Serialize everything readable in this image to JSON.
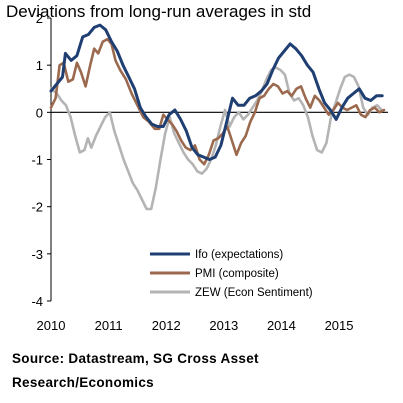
{
  "chart_data": {
    "type": "line",
    "title": "Deviations from long-run averages in std",
    "xlabel": "",
    "ylabel": "",
    "xlim": [
      2010.0,
      2015.85
    ],
    "ylim": [
      -4,
      2
    ],
    "y_ticks": [
      2,
      1,
      0,
      -1,
      -2,
      -3,
      -4
    ],
    "x_ticks": [
      2010,
      2011,
      2012,
      2013,
      2014,
      2015
    ],
    "grid": false,
    "legend_position": "lower-center",
    "series": [
      {
        "name": "Ifo (expectations)",
        "color": "#1f3f73",
        "points": [
          [
            2010.0,
            0.45
          ],
          [
            2010.1,
            0.6
          ],
          [
            2010.2,
            0.75
          ],
          [
            2010.25,
            1.25
          ],
          [
            2010.35,
            1.1
          ],
          [
            2010.45,
            1.2
          ],
          [
            2010.55,
            1.6
          ],
          [
            2010.65,
            1.65
          ],
          [
            2010.75,
            1.8
          ],
          [
            2010.85,
            1.85
          ],
          [
            2010.95,
            1.75
          ],
          [
            2011.05,
            1.5
          ],
          [
            2011.15,
            1.3
          ],
          [
            2011.25,
            1.0
          ],
          [
            2011.35,
            0.75
          ],
          [
            2011.45,
            0.5
          ],
          [
            2011.55,
            0.1
          ],
          [
            2011.65,
            -0.1
          ],
          [
            2011.75,
            -0.25
          ],
          [
            2011.85,
            -0.3
          ],
          [
            2011.95,
            -0.3
          ],
          [
            2012.05,
            -0.05
          ],
          [
            2012.15,
            0.05
          ],
          [
            2012.25,
            -0.15
          ],
          [
            2012.35,
            -0.4
          ],
          [
            2012.45,
            -0.75
          ],
          [
            2012.55,
            -0.9
          ],
          [
            2012.65,
            -0.95
          ],
          [
            2012.75,
            -1.0
          ],
          [
            2012.85,
            -0.95
          ],
          [
            2012.95,
            -0.7
          ],
          [
            2013.05,
            -0.2
          ],
          [
            2013.15,
            0.3
          ],
          [
            2013.25,
            0.15
          ],
          [
            2013.35,
            0.15
          ],
          [
            2013.45,
            0.3
          ],
          [
            2013.55,
            0.35
          ],
          [
            2013.65,
            0.45
          ],
          [
            2013.75,
            0.6
          ],
          [
            2013.85,
            0.9
          ],
          [
            2013.95,
            1.15
          ],
          [
            2014.05,
            1.3
          ],
          [
            2014.15,
            1.45
          ],
          [
            2014.25,
            1.35
          ],
          [
            2014.35,
            1.2
          ],
          [
            2014.45,
            1.0
          ],
          [
            2014.55,
            0.85
          ],
          [
            2014.65,
            0.5
          ],
          [
            2014.75,
            0.2
          ],
          [
            2014.85,
            0.05
          ],
          [
            2014.95,
            -0.15
          ],
          [
            2015.05,
            0.1
          ],
          [
            2015.15,
            0.3
          ],
          [
            2015.25,
            0.4
          ],
          [
            2015.35,
            0.5
          ],
          [
            2015.45,
            0.3
          ],
          [
            2015.55,
            0.25
          ],
          [
            2015.65,
            0.35
          ],
          [
            2015.75,
            0.35
          ]
        ]
      },
      {
        "name": "PMI (composite)",
        "color": "#9b6a4e",
        "points": [
          [
            2010.0,
            0.1
          ],
          [
            2010.08,
            0.3
          ],
          [
            2010.15,
            1.0
          ],
          [
            2010.22,
            1.05
          ],
          [
            2010.3,
            0.65
          ],
          [
            2010.38,
            0.7
          ],
          [
            2010.45,
            1.05
          ],
          [
            2010.52,
            0.85
          ],
          [
            2010.6,
            0.55
          ],
          [
            2010.68,
            1.0
          ],
          [
            2010.75,
            1.35
          ],
          [
            2010.82,
            1.25
          ],
          [
            2010.9,
            1.5
          ],
          [
            2010.98,
            1.55
          ],
          [
            2011.05,
            1.45
          ],
          [
            2011.12,
            1.1
          ],
          [
            2011.2,
            0.9
          ],
          [
            2011.3,
            0.7
          ],
          [
            2011.4,
            0.4
          ],
          [
            2011.5,
            0.15
          ],
          [
            2011.6,
            -0.1
          ],
          [
            2011.7,
            -0.2
          ],
          [
            2011.8,
            -0.35
          ],
          [
            2011.88,
            -0.35
          ],
          [
            2011.95,
            -0.05
          ],
          [
            2012.02,
            -0.15
          ],
          [
            2012.1,
            -0.25
          ],
          [
            2012.18,
            -0.4
          ],
          [
            2012.26,
            -0.6
          ],
          [
            2012.34,
            -0.75
          ],
          [
            2012.42,
            -0.8
          ],
          [
            2012.5,
            -0.7
          ],
          [
            2012.58,
            -1.0
          ],
          [
            2012.66,
            -1.1
          ],
          [
            2012.74,
            -0.9
          ],
          [
            2012.82,
            -0.6
          ],
          [
            2012.9,
            -0.55
          ],
          [
            2012.98,
            -0.45
          ],
          [
            2013.06,
            -0.3
          ],
          [
            2013.14,
            -0.6
          ],
          [
            2013.22,
            -0.9
          ],
          [
            2013.3,
            -0.65
          ],
          [
            2013.38,
            -0.5
          ],
          [
            2013.46,
            -0.2
          ],
          [
            2013.54,
            0.0
          ],
          [
            2013.62,
            0.3
          ],
          [
            2013.7,
            0.35
          ],
          [
            2013.78,
            0.5
          ],
          [
            2013.86,
            0.6
          ],
          [
            2013.94,
            0.55
          ],
          [
            2014.02,
            0.4
          ],
          [
            2014.1,
            0.45
          ],
          [
            2014.18,
            0.35
          ],
          [
            2014.26,
            0.5
          ],
          [
            2014.34,
            0.55
          ],
          [
            2014.42,
            0.3
          ],
          [
            2014.5,
            0.1
          ],
          [
            2014.58,
            0.35
          ],
          [
            2014.66,
            0.25
          ],
          [
            2014.74,
            0.1
          ],
          [
            2014.82,
            -0.05
          ],
          [
            2014.9,
            0.05
          ],
          [
            2014.98,
            0.2
          ],
          [
            2015.06,
            0.1
          ],
          [
            2015.14,
            0.05
          ],
          [
            2015.22,
            0.1
          ],
          [
            2015.3,
            0.15
          ],
          [
            2015.38,
            -0.05
          ],
          [
            2015.46,
            -0.1
          ],
          [
            2015.54,
            0.05
          ],
          [
            2015.62,
            0.1
          ],
          [
            2015.7,
            0.0
          ],
          [
            2015.78,
            0.05
          ]
        ]
      },
      {
        "name": "ZEW (Econ Sentiment)",
        "color": "#b4b4b4",
        "points": [
          [
            2010.0,
            0.5
          ],
          [
            2010.1,
            0.4
          ],
          [
            2010.18,
            0.25
          ],
          [
            2010.26,
            0.15
          ],
          [
            2010.34,
            -0.1
          ],
          [
            2010.42,
            -0.5
          ],
          [
            2010.5,
            -0.85
          ],
          [
            2010.58,
            -0.8
          ],
          [
            2010.64,
            -0.55
          ],
          [
            2010.7,
            -0.75
          ],
          [
            2010.78,
            -0.5
          ],
          [
            2010.86,
            -0.3
          ],
          [
            2010.94,
            -0.1
          ],
          [
            2011.02,
            0.0
          ],
          [
            2011.1,
            -0.4
          ],
          [
            2011.18,
            -0.7
          ],
          [
            2011.26,
            -1.0
          ],
          [
            2011.34,
            -1.25
          ],
          [
            2011.42,
            -1.5
          ],
          [
            2011.5,
            -1.65
          ],
          [
            2011.58,
            -1.85
          ],
          [
            2011.66,
            -2.05
          ],
          [
            2011.74,
            -2.05
          ],
          [
            2011.82,
            -1.6
          ],
          [
            2011.9,
            -1.0
          ],
          [
            2011.98,
            -0.45
          ],
          [
            2012.06,
            -0.1
          ],
          [
            2012.14,
            -0.45
          ],
          [
            2012.22,
            -0.65
          ],
          [
            2012.3,
            -0.85
          ],
          [
            2012.38,
            -1.0
          ],
          [
            2012.46,
            -1.1
          ],
          [
            2012.54,
            -1.25
          ],
          [
            2012.62,
            -1.3
          ],
          [
            2012.7,
            -1.2
          ],
          [
            2012.78,
            -1.0
          ],
          [
            2012.86,
            -0.7
          ],
          [
            2012.94,
            -0.3
          ],
          [
            2013.02,
            0.05
          ],
          [
            2013.1,
            -0.3
          ],
          [
            2013.18,
            -0.1
          ],
          [
            2013.26,
            0.0
          ],
          [
            2013.34,
            -0.15
          ],
          [
            2013.42,
            -0.05
          ],
          [
            2013.5,
            0.1
          ],
          [
            2013.58,
            0.25
          ],
          [
            2013.66,
            0.45
          ],
          [
            2013.74,
            0.7
          ],
          [
            2013.82,
            0.9
          ],
          [
            2013.9,
            0.95
          ],
          [
            2013.98,
            0.9
          ],
          [
            2014.06,
            0.8
          ],
          [
            2014.14,
            0.4
          ],
          [
            2014.22,
            0.25
          ],
          [
            2014.3,
            0.3
          ],
          [
            2014.38,
            0.15
          ],
          [
            2014.46,
            -0.1
          ],
          [
            2014.54,
            -0.5
          ],
          [
            2014.62,
            -0.8
          ],
          [
            2014.7,
            -0.85
          ],
          [
            2014.78,
            -0.65
          ],
          [
            2014.86,
            -0.1
          ],
          [
            2014.94,
            0.2
          ],
          [
            2015.02,
            0.5
          ],
          [
            2015.1,
            0.75
          ],
          [
            2015.18,
            0.8
          ],
          [
            2015.26,
            0.75
          ],
          [
            2015.34,
            0.55
          ],
          [
            2015.42,
            0.1
          ],
          [
            2015.5,
            -0.05
          ],
          [
            2015.58,
            0.1
          ],
          [
            2015.66,
            0.15
          ],
          [
            2015.74,
            0.05
          ]
        ]
      }
    ]
  },
  "source_line1": "Source: Datastream, SG Cross Asset",
  "source_line2": "Research/Economics"
}
